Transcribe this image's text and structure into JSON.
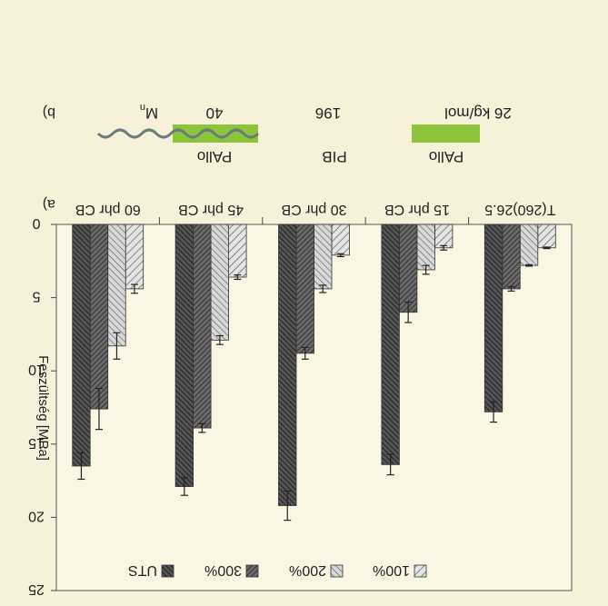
{
  "panel_b": {
    "label": "b)",
    "mn_label": "M",
    "mn_sub": "n",
    "mass_left": "40",
    "mass_mid": "196",
    "mass_right": "26 kg/mol",
    "block_left": "PAllo",
    "block_mid": "PIB",
    "block_right": "PAllo",
    "block_color": "#8cc43c",
    "chain_color": "#6a7b7d"
  },
  "chart_data": {
    "type": "bar",
    "panel_label": "a)",
    "categories": [
      "T(260)26.5",
      "15 phr CB",
      "30 phr CB",
      "45 phr CB",
      "60 phr CB"
    ],
    "ylabel": "Feszültség [MPa]",
    "ylim": [
      0,
      25
    ],
    "y_ticks": [
      0,
      5,
      10,
      15,
      20,
      25
    ],
    "plot_background": "#fbf6e4",
    "bar_color": "#9a9a9a",
    "series": [
      {
        "name": "100%",
        "values": [
          1.6,
          1.6,
          2.1,
          3.6,
          4.4
        ],
        "errors": [
          0.05,
          0.15,
          0.1,
          0.15,
          0.3
        ]
      },
      {
        "name": "200%",
        "values": [
          2.8,
          3.1,
          4.4,
          7.9,
          8.3
        ],
        "errors": [
          0.05,
          0.3,
          0.25,
          0.3,
          0.9
        ]
      },
      {
        "name": "300%",
        "values": [
          4.4,
          6.0,
          8.8,
          13.9,
          12.6
        ],
        "errors": [
          0.15,
          0.7,
          0.4,
          0.3,
          1.4
        ]
      },
      {
        "name": "UTS",
        "values": [
          12.8,
          16.4,
          19.2,
          17.9,
          16.5
        ],
        "errors": [
          0.7,
          0.7,
          1.0,
          0.6,
          0.9
        ]
      }
    ]
  }
}
